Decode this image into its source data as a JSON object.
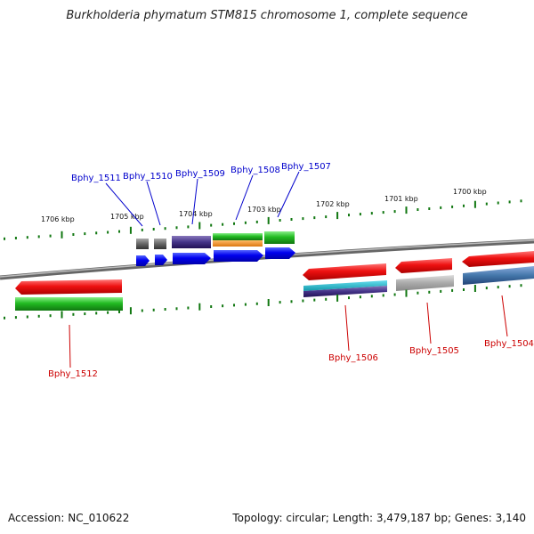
{
  "title": "Burkholderia phymatum STM815 chromosome 1, complete sequence",
  "footer": {
    "accession": "Accession: NC_010622",
    "summary": "Topology: circular; Length: 3,479,187 bp; Genes: 3,140"
  },
  "scale_labels": [
    "1706 kbp",
    "1705 kbp",
    "1704 kbp",
    "1703 kbp",
    "1702 kbp",
    "1701 kbp",
    "1700 kbp"
  ],
  "genes_top": [
    {
      "name": "Bphy_1511",
      "color": "#0000cc"
    },
    {
      "name": "Bphy_1510",
      "color": "#0000cc"
    },
    {
      "name": "Bphy_1509",
      "color": "#0000cc"
    },
    {
      "name": "Bphy_1508",
      "color": "#0000cc"
    },
    {
      "name": "Bphy_1507",
      "color": "#0000cc"
    }
  ],
  "genes_bottom": [
    {
      "name": "Bphy_1512",
      "color": "#cc0000"
    },
    {
      "name": "Bphy_1506",
      "color": "#cc0000"
    },
    {
      "name": "Bphy_1505",
      "color": "#cc0000"
    },
    {
      "name": "Bphy_1504",
      "color": "#cc0000"
    }
  ],
  "colors": {
    "tick_green": "#117711",
    "backbone": "#888888",
    "red": "#ee1111",
    "green": "#22bb22",
    "blue": "#0000ee",
    "purple": "#443388",
    "gray": "#666666",
    "orange": "#ee8822",
    "cyan": "#22bbcc",
    "steel": "#4477aa",
    "light_gray": "#aaaaaa"
  }
}
